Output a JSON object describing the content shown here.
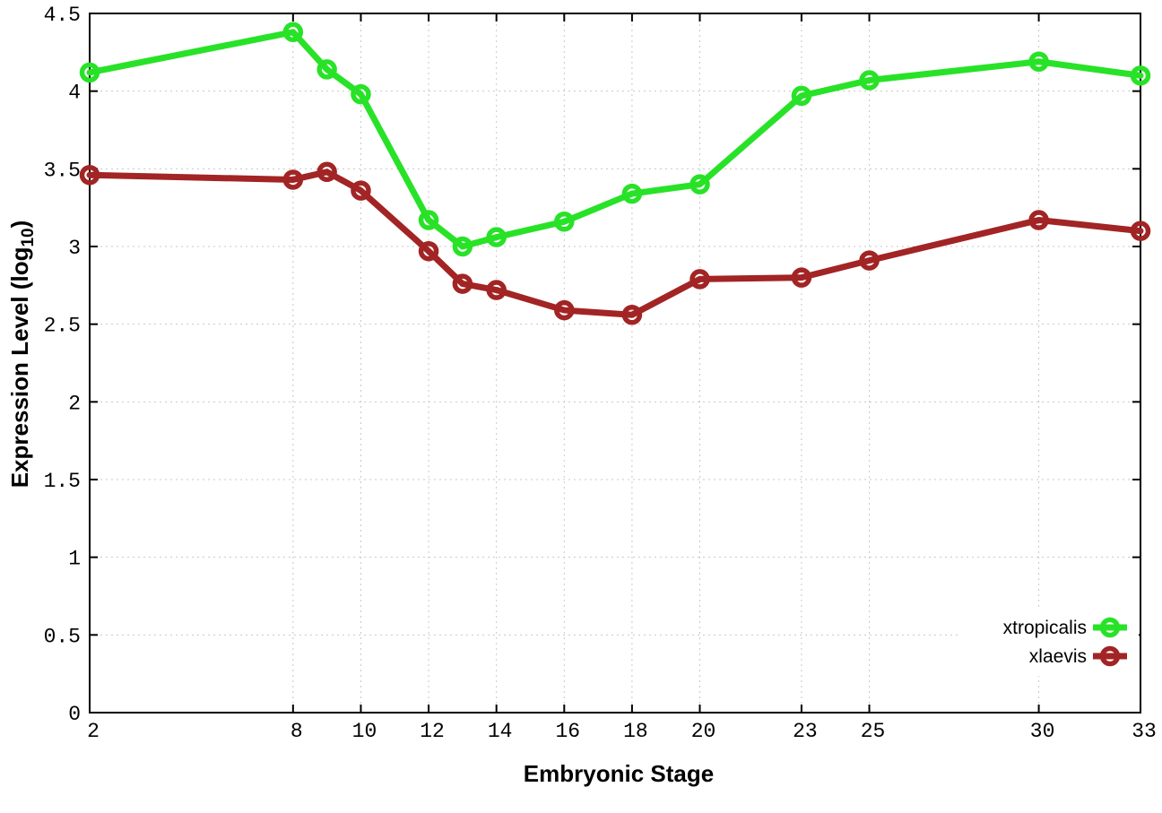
{
  "chart_data": {
    "type": "line",
    "title": "",
    "xlabel": "Embryonic Stage",
    "ylabel": "Expression Level (log10)",
    "ylabel_parts": {
      "main": "Expression Level (log",
      "sub": "10",
      "end": ")"
    },
    "x": [
      2,
      8,
      9,
      10,
      12,
      13,
      14,
      16,
      18,
      20,
      23,
      25,
      30,
      33
    ],
    "series": [
      {
        "name": "xtropicalis",
        "color": "#28e228",
        "marker": "open-circle",
        "values": [
          4.12,
          4.38,
          4.14,
          3.98,
          3.17,
          3.0,
          3.06,
          3.16,
          3.34,
          3.4,
          3.97,
          4.07,
          4.19,
          4.1
        ]
      },
      {
        "name": "xlaevis",
        "color": "#a22424",
        "marker": "open-circle",
        "values": [
          3.46,
          3.43,
          3.48,
          3.36,
          2.97,
          2.76,
          2.72,
          2.59,
          2.56,
          2.79,
          2.8,
          2.91,
          3.17,
          3.1
        ]
      }
    ],
    "x_ticks": [
      2,
      8,
      10,
      12,
      14,
      16,
      18,
      20,
      23,
      25,
      30,
      33
    ],
    "y_ticks": [
      0,
      0.5,
      1,
      1.5,
      2,
      2.5,
      3,
      3.5,
      4,
      4.5
    ],
    "xlim": [
      2,
      33
    ],
    "ylim": [
      0,
      4.5
    ],
    "grid": true,
    "legend_position": "bottom-right"
  },
  "styles": {
    "background": "#ffffff",
    "axis_color": "#000000",
    "grid_color": "#c8c8c8",
    "text_color": "#000000"
  }
}
